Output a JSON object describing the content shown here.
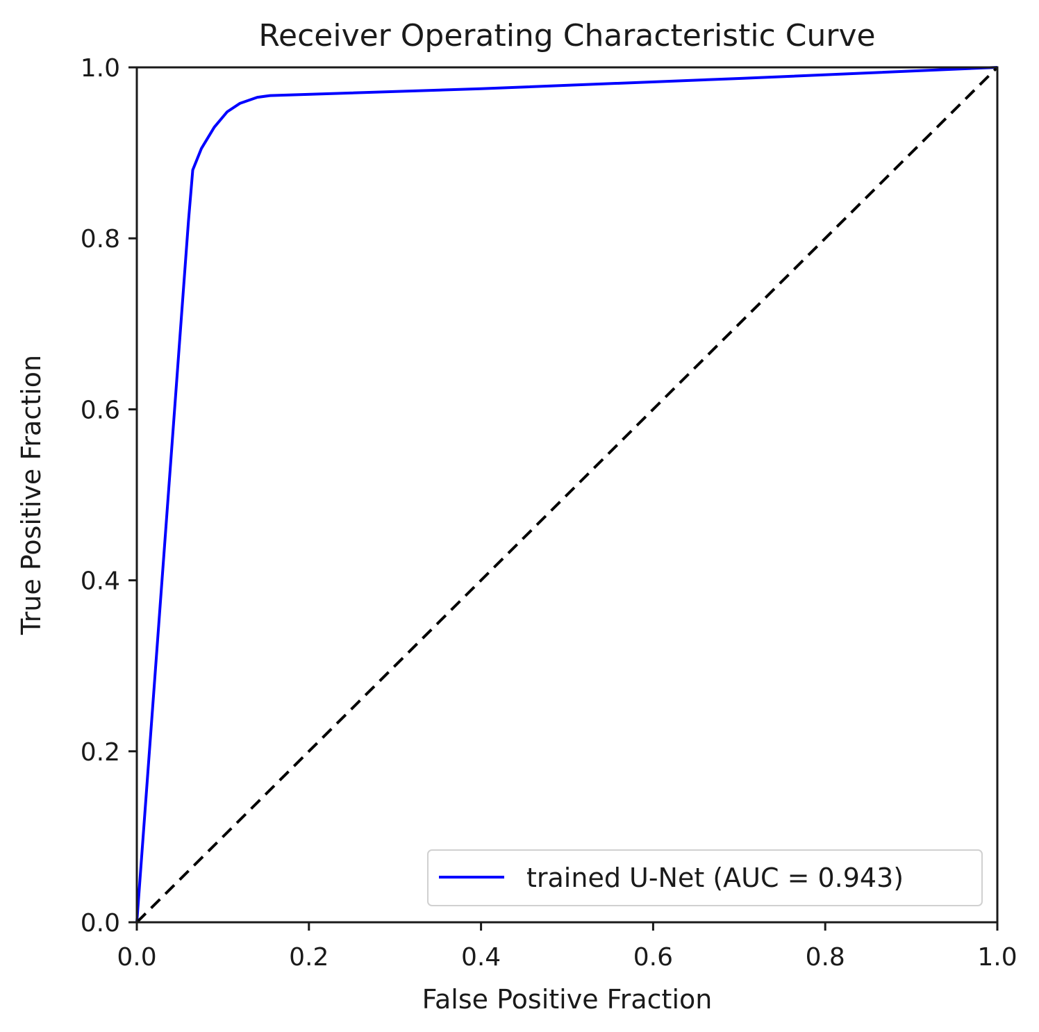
{
  "chart_data": {
    "type": "line",
    "title": "Receiver Operating Characteristic Curve",
    "xlabel": "False Positive Fraction",
    "ylabel": "True Positive Fraction",
    "xlim": [
      0.0,
      1.0
    ],
    "ylim": [
      0.0,
      1.0
    ],
    "grid": false,
    "legend_position": "lower-right",
    "x_ticks": [
      "0.0",
      "0.2",
      "0.4",
      "0.6",
      "0.8",
      "1.0"
    ],
    "y_ticks": [
      "0.0",
      "0.2",
      "0.4",
      "0.6",
      "0.8",
      "1.0"
    ],
    "series": [
      {
        "name": "trained U-Net (AUC = 0.943)",
        "color": "#0000ff",
        "style": "solid",
        "x": [
          0.0,
          0.06,
          0.065,
          0.075,
          0.09,
          0.105,
          0.12,
          0.14,
          0.155,
          0.4,
          0.7,
          1.0
        ],
        "y": [
          0.0,
          0.82,
          0.88,
          0.905,
          0.93,
          0.948,
          0.958,
          0.965,
          0.967,
          0.975,
          0.987,
          1.0
        ]
      },
      {
        "color": "#000000",
        "style": "dashed",
        "x": [
          0.0,
          1.0
        ],
        "y": [
          0.0,
          1.0
        ]
      }
    ]
  }
}
